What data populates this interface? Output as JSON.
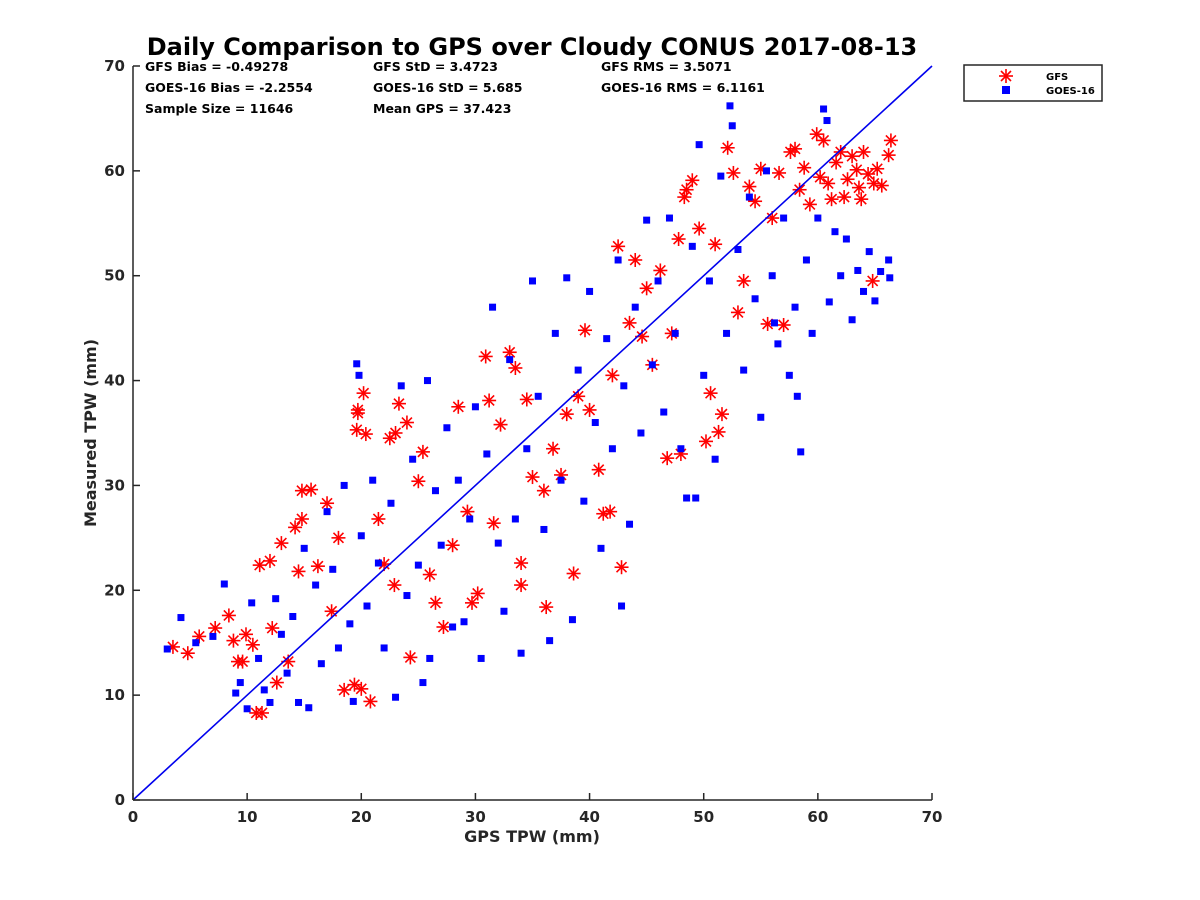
{
  "chart_data": {
    "type": "scatter",
    "title": "Daily Comparison to GPS over Cloudy CONUS 2017-08-13",
    "xlabel": "GPS TPW (mm)",
    "ylabel": "Measured TPW (mm)",
    "xlim": [
      0,
      70
    ],
    "ylim": [
      0,
      70
    ],
    "xticks": [
      "0",
      "10",
      "20",
      "30",
      "40",
      "50",
      "60",
      "70"
    ],
    "yticks": [
      "0",
      "10",
      "20",
      "30",
      "40",
      "50",
      "60",
      "70"
    ],
    "grid": false,
    "legend_position": "outside top-right",
    "reference_line": {
      "x": [
        0,
        70
      ],
      "y": [
        0,
        70
      ],
      "color": "#0000ee"
    },
    "stats": {
      "gfs_bias": "GFS Bias = -0.49278",
      "gfs_std": "GFS StD = 3.4723",
      "gfs_rms": "GFS RMS = 3.5071",
      "goes_bias": "GOES-16 Bias = -2.2554",
      "goes_std": "GOES-16 StD = 5.685",
      "goes_rms": "GOES-16 RMS = 6.1161",
      "sample_size": "Sample Size = 11646",
      "mean_gps": "Mean GPS = 37.423"
    },
    "series": [
      {
        "name": "GFS",
        "marker": "asterisk",
        "color": "#ff0000",
        "points": [
          [
            3.5,
            14.6
          ],
          [
            4.8,
            14.0
          ],
          [
            5.8,
            15.6
          ],
          [
            7.2,
            16.4
          ],
          [
            8.4,
            17.6
          ],
          [
            8.8,
            15.2
          ],
          [
            9.2,
            13.2
          ],
          [
            9.6,
            13.2
          ],
          [
            9.9,
            15.8
          ],
          [
            10.5,
            14.8
          ],
          [
            10.8,
            8.3
          ],
          [
            11.3,
            8.3
          ],
          [
            11.1,
            22.4
          ],
          [
            12.0,
            22.8
          ],
          [
            12.2,
            16.4
          ],
          [
            12.6,
            11.2
          ],
          [
            13.0,
            24.5
          ],
          [
            13.6,
            13.2
          ],
          [
            14.2,
            26.0
          ],
          [
            14.5,
            21.8
          ],
          [
            14.8,
            26.8
          ],
          [
            14.8,
            29.5
          ],
          [
            15.6,
            29.6
          ],
          [
            16.2,
            22.3
          ],
          [
            17.0,
            28.3
          ],
          [
            17.4,
            18.0
          ],
          [
            18.0,
            25.0
          ],
          [
            18.5,
            10.5
          ],
          [
            19.4,
            11.0
          ],
          [
            20.0,
            10.6
          ],
          [
            19.6,
            35.3
          ],
          [
            19.7,
            36.9
          ],
          [
            19.7,
            37.2
          ],
          [
            20.2,
            38.8
          ],
          [
            20.4,
            34.9
          ],
          [
            20.8,
            9.4
          ],
          [
            21.5,
            26.8
          ],
          [
            22.0,
            22.5
          ],
          [
            22.5,
            34.5
          ],
          [
            22.9,
            20.5
          ],
          [
            23.0,
            35.0
          ],
          [
            23.3,
            37.8
          ],
          [
            24.0,
            36.0
          ],
          [
            24.3,
            13.6
          ],
          [
            25.0,
            30.4
          ],
          [
            25.4,
            33.2
          ],
          [
            26.0,
            21.5
          ],
          [
            26.5,
            18.8
          ],
          [
            27.2,
            16.5
          ],
          [
            28.0,
            24.3
          ],
          [
            28.5,
            37.5
          ],
          [
            29.3,
            27.5
          ],
          [
            29.7,
            18.8
          ],
          [
            30.2,
            19.7
          ],
          [
            30.9,
            42.3
          ],
          [
            31.2,
            38.1
          ],
          [
            31.6,
            26.4
          ],
          [
            32.2,
            35.8
          ],
          [
            33.0,
            42.7
          ],
          [
            33.5,
            41.2
          ],
          [
            34.0,
            20.5
          ],
          [
            34.0,
            22.6
          ],
          [
            34.5,
            38.2
          ],
          [
            35.0,
            30.8
          ],
          [
            36.0,
            29.5
          ],
          [
            36.2,
            18.4
          ],
          [
            36.8,
            33.5
          ],
          [
            37.5,
            31.0
          ],
          [
            38.0,
            36.8
          ],
          [
            38.6,
            21.6
          ],
          [
            39.0,
            38.5
          ],
          [
            39.6,
            44.8
          ],
          [
            40.0,
            37.2
          ],
          [
            40.8,
            31.5
          ],
          [
            41.2,
            27.3
          ],
          [
            41.8,
            27.5
          ],
          [
            42.0,
            40.5
          ],
          [
            42.5,
            52.8
          ],
          [
            42.8,
            22.2
          ],
          [
            43.5,
            45.5
          ],
          [
            44.0,
            51.5
          ],
          [
            44.6,
            44.2
          ],
          [
            45.0,
            48.8
          ],
          [
            45.5,
            41.5
          ],
          [
            46.2,
            50.5
          ],
          [
            46.8,
            32.6
          ],
          [
            47.2,
            44.5
          ],
          [
            47.8,
            53.5
          ],
          [
            48.0,
            33.0
          ],
          [
            48.3,
            57.5
          ],
          [
            48.5,
            58.2
          ],
          [
            49.0,
            59.1
          ],
          [
            49.6,
            54.5
          ],
          [
            50.2,
            34.2
          ],
          [
            50.6,
            38.8
          ],
          [
            51.0,
            53.0
          ],
          [
            51.3,
            35.1
          ],
          [
            51.6,
            36.8
          ],
          [
            52.1,
            62.2
          ],
          [
            52.6,
            59.8
          ],
          [
            53.0,
            46.5
          ],
          [
            53.5,
            49.5
          ],
          [
            54.0,
            58.5
          ],
          [
            54.5,
            57.1
          ],
          [
            55.0,
            60.2
          ],
          [
            55.6,
            45.4
          ],
          [
            56.0,
            55.5
          ],
          [
            56.6,
            59.8
          ],
          [
            57.0,
            45.3
          ],
          [
            57.6,
            61.8
          ],
          [
            58.0,
            62.1
          ],
          [
            58.4,
            58.2
          ],
          [
            58.8,
            60.3
          ],
          [
            59.3,
            56.8
          ],
          [
            59.9,
            63.5
          ],
          [
            60.2,
            59.4
          ],
          [
            60.5,
            62.9
          ],
          [
            60.9,
            58.8
          ],
          [
            61.2,
            57.3
          ],
          [
            61.6,
            60.8
          ],
          [
            62.0,
            61.8
          ],
          [
            62.3,
            57.5
          ],
          [
            62.6,
            59.2
          ],
          [
            63.0,
            61.4
          ],
          [
            63.4,
            60.1
          ],
          [
            63.6,
            58.4
          ],
          [
            64.0,
            61.8
          ],
          [
            64.4,
            59.7
          ],
          [
            64.8,
            49.5
          ],
          [
            65.2,
            60.2
          ],
          [
            65.6,
            58.6
          ],
          [
            66.2,
            61.5
          ],
          [
            66.4,
            62.9
          ],
          [
            64.9,
            58.8
          ],
          [
            63.8,
            57.3
          ]
        ]
      },
      {
        "name": "GOES-16",
        "marker": "square",
        "color": "#0000ff",
        "points": [
          [
            3.0,
            14.4
          ],
          [
            4.2,
            17.4
          ],
          [
            5.5,
            15.0
          ],
          [
            7.0,
            15.6
          ],
          [
            8.0,
            20.6
          ],
          [
            9.0,
            10.2
          ],
          [
            9.4,
            11.2
          ],
          [
            10.0,
            8.7
          ],
          [
            10.4,
            18.8
          ],
          [
            11.0,
            13.5
          ],
          [
            11.5,
            10.5
          ],
          [
            12.0,
            9.3
          ],
          [
            12.5,
            19.2
          ],
          [
            13.0,
            15.8
          ],
          [
            13.5,
            12.1
          ],
          [
            14.0,
            17.5
          ],
          [
            14.5,
            9.3
          ],
          [
            15.0,
            24.0
          ],
          [
            15.4,
            8.8
          ],
          [
            16.0,
            20.5
          ],
          [
            16.5,
            13.0
          ],
          [
            17.0,
            27.5
          ],
          [
            17.5,
            22.0
          ],
          [
            18.0,
            14.5
          ],
          [
            18.5,
            30.0
          ],
          [
            19.0,
            16.8
          ],
          [
            19.3,
            9.4
          ],
          [
            19.6,
            41.6
          ],
          [
            19.8,
            40.5
          ],
          [
            20.0,
            25.2
          ],
          [
            20.5,
            18.5
          ],
          [
            21.0,
            30.5
          ],
          [
            21.5,
            22.6
          ],
          [
            22.0,
            14.5
          ],
          [
            22.6,
            28.3
          ],
          [
            23.0,
            9.8
          ],
          [
            23.5,
            39.5
          ],
          [
            24.0,
            19.5
          ],
          [
            24.5,
            32.5
          ],
          [
            25.0,
            22.4
          ],
          [
            25.4,
            11.2
          ],
          [
            25.8,
            40.0
          ],
          [
            26.0,
            13.5
          ],
          [
            26.5,
            29.5
          ],
          [
            27.0,
            24.3
          ],
          [
            27.5,
            35.5
          ],
          [
            28.0,
            16.5
          ],
          [
            28.5,
            30.5
          ],
          [
            29.0,
            17.0
          ],
          [
            29.5,
            26.8
          ],
          [
            30.0,
            37.5
          ],
          [
            30.5,
            13.5
          ],
          [
            31.0,
            33.0
          ],
          [
            31.5,
            47.0
          ],
          [
            32.0,
            24.5
          ],
          [
            32.5,
            18.0
          ],
          [
            33.0,
            42.0
          ],
          [
            33.5,
            26.8
          ],
          [
            34.0,
            14.0
          ],
          [
            34.5,
            33.5
          ],
          [
            35.0,
            49.5
          ],
          [
            35.5,
            38.5
          ],
          [
            36.0,
            25.8
          ],
          [
            36.5,
            15.2
          ],
          [
            37.0,
            44.5
          ],
          [
            37.5,
            30.5
          ],
          [
            38.0,
            49.8
          ],
          [
            38.5,
            17.2
          ],
          [
            39.0,
            41.0
          ],
          [
            39.5,
            28.5
          ],
          [
            40.0,
            48.5
          ],
          [
            40.5,
            36.0
          ],
          [
            41.0,
            24.0
          ],
          [
            41.5,
            44.0
          ],
          [
            42.0,
            33.5
          ],
          [
            42.5,
            51.5
          ],
          [
            42.8,
            18.5
          ],
          [
            43.0,
            39.5
          ],
          [
            43.5,
            26.3
          ],
          [
            44.0,
            47.0
          ],
          [
            44.5,
            35.0
          ],
          [
            45.0,
            55.3
          ],
          [
            45.5,
            41.5
          ],
          [
            46.0,
            49.5
          ],
          [
            46.5,
            37.0
          ],
          [
            47.0,
            55.5
          ],
          [
            47.5,
            44.5
          ],
          [
            48.0,
            33.5
          ],
          [
            48.5,
            28.8
          ],
          [
            49.0,
            52.8
          ],
          [
            49.3,
            28.8
          ],
          [
            49.6,
            62.5
          ],
          [
            50.0,
            40.5
          ],
          [
            50.5,
            49.5
          ],
          [
            51.0,
            32.5
          ],
          [
            51.5,
            59.5
          ],
          [
            52.0,
            44.5
          ],
          [
            52.3,
            66.2
          ],
          [
            52.5,
            64.3
          ],
          [
            53.0,
            52.5
          ],
          [
            53.5,
            41.0
          ],
          [
            54.0,
            57.5
          ],
          [
            54.5,
            47.8
          ],
          [
            55.0,
            36.5
          ],
          [
            55.5,
            60.0
          ],
          [
            56.0,
            50.0
          ],
          [
            56.5,
            43.5
          ],
          [
            57.0,
            55.5
          ],
          [
            57.5,
            40.5
          ],
          [
            58.0,
            47.0
          ],
          [
            58.5,
            33.2
          ],
          [
            59.0,
            51.5
          ],
          [
            59.5,
            44.5
          ],
          [
            60.0,
            55.5
          ],
          [
            60.5,
            65.9
          ],
          [
            61.0,
            47.5
          ],
          [
            61.5,
            54.2
          ],
          [
            62.0,
            50.0
          ],
          [
            62.5,
            53.5
          ],
          [
            63.0,
            45.8
          ],
          [
            63.5,
            50.5
          ],
          [
            64.0,
            48.5
          ],
          [
            64.5,
            52.3
          ],
          [
            65.0,
            47.6
          ],
          [
            65.5,
            50.4
          ],
          [
            66.2,
            51.5
          ],
          [
            66.3,
            49.8
          ],
          [
            60.8,
            64.8
          ],
          [
            58.2,
            38.5
          ],
          [
            56.2,
            45.5
          ]
        ]
      }
    ]
  }
}
